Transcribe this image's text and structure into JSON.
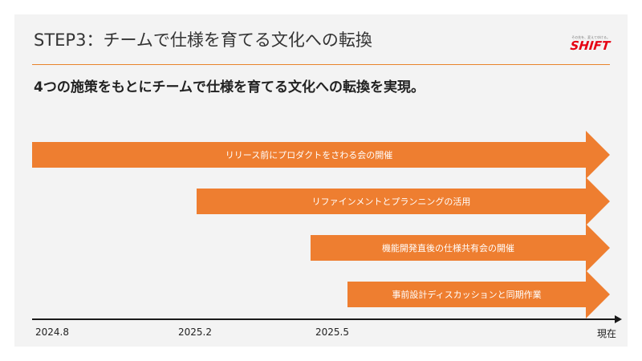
{
  "title": "STEP3：チームで仕様を育てる文化への転換",
  "logo": {
    "tagline": "その先を、変えてゆける。",
    "text": "SHIFT",
    "color": "#e60012"
  },
  "headline": "4つの施策をもとにチームで仕様を育てる文化への転換を実現。",
  "accent_color": "#ee7e30",
  "initiatives": [
    {
      "label": "リリース前にプロダクトをさわる会の開催",
      "start": "2024.8"
    },
    {
      "label": "リファインメントとプランニングの活用",
      "start": "2025.2"
    },
    {
      "label": "機能開発直後の仕様共有会の開催",
      "start": "2025.5"
    },
    {
      "label": "事前設計ディスカッションと同期作業"
    }
  ],
  "timeline": {
    "ticks": [
      "2024.8",
      "2025.2",
      "2025.5",
      "現在"
    ]
  }
}
